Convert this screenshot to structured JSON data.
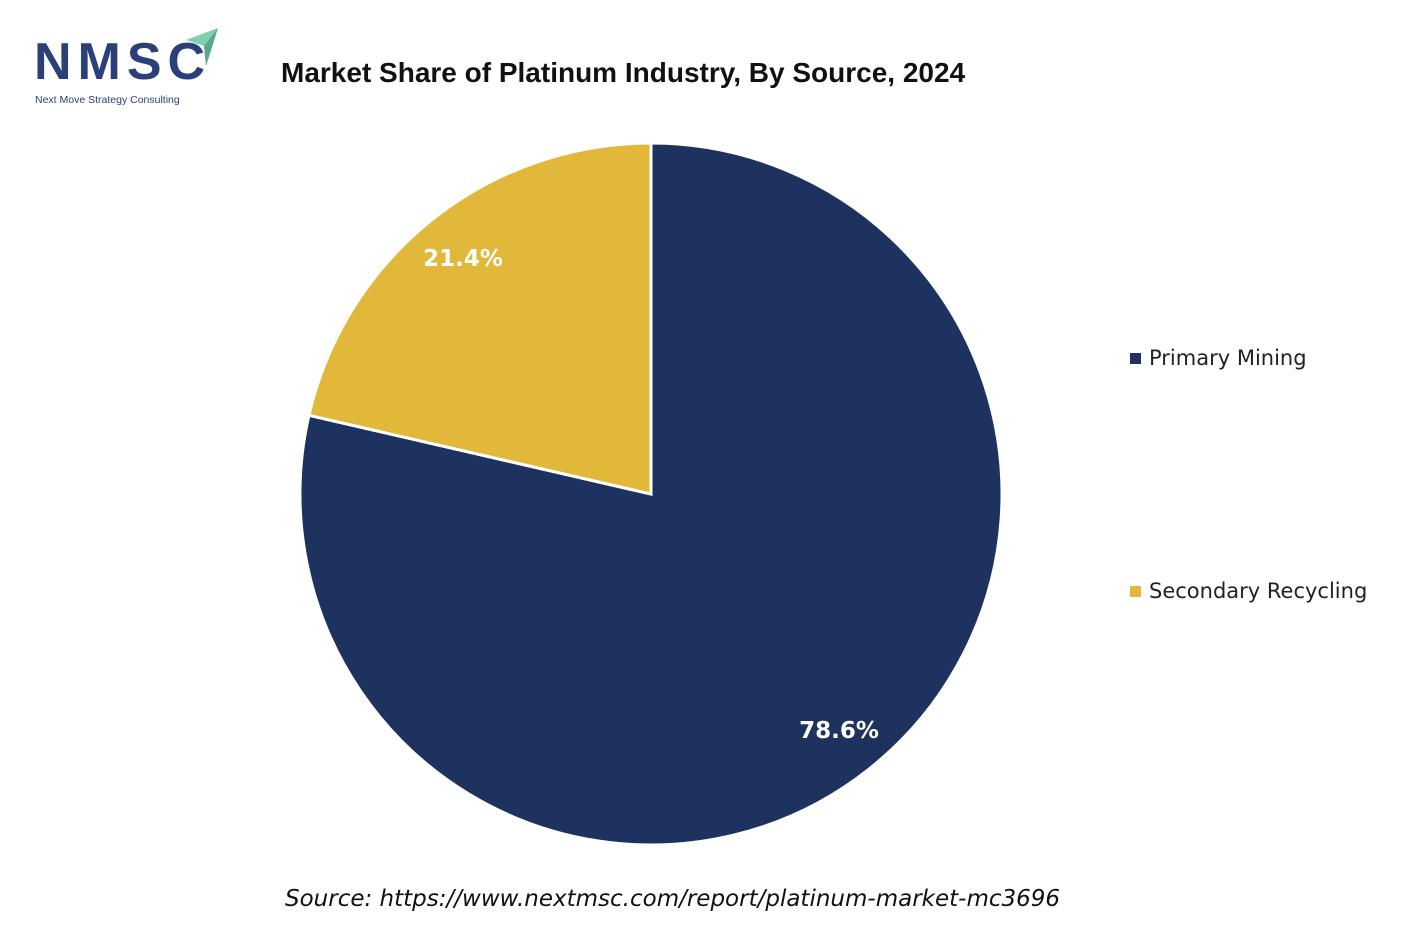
{
  "logo": {
    "text": "NMSC",
    "subtitle": "Next Move Strategy Consulting"
  },
  "chart_data": {
    "type": "pie",
    "title": "Market Share of Platinum Industry, By Source, 2024",
    "categories": [
      "Primary Mining",
      "Secondary Recycling"
    ],
    "values": [
      78.6,
      21.4
    ],
    "labels": [
      "78.6%",
      "21.4%"
    ],
    "colors": [
      "#1e325f",
      "#e2b83a"
    ],
    "start_angle": "top, clockwise",
    "legend": "right"
  },
  "source": "Source: https://www.nextmsc.com/report/platinum-market-mc3696"
}
